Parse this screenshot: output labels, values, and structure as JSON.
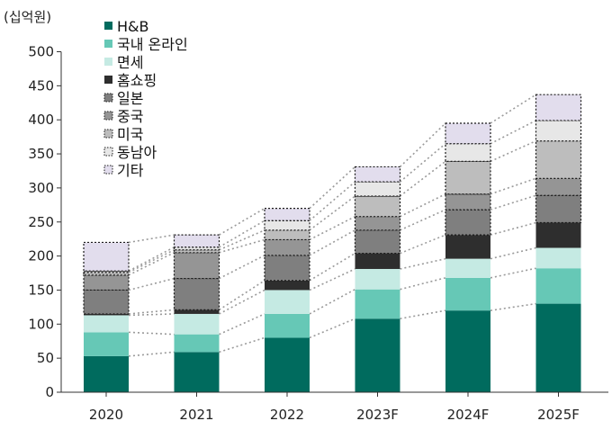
{
  "chart_data": {
    "type": "bar",
    "stacked": true,
    "unit_label": "(십억원)",
    "categories": [
      "2020",
      "2021",
      "2022",
      "2023F",
      "2024F",
      "2025F"
    ],
    "ylim": [
      0,
      500
    ],
    "yticks": [
      0,
      50,
      100,
      150,
      200,
      250,
      300,
      350,
      400,
      450,
      500
    ],
    "grid": false,
    "legend_position": "top-left",
    "connector_lines": "dotted lines join matching segment boundaries of adjacent bars",
    "series": [
      {
        "name": "H&B",
        "color": "#006B5E",
        "values": [
          53,
          59,
          80,
          108,
          120,
          130
        ]
      },
      {
        "name": "국내 온라인",
        "color": "#66C8B6",
        "values": [
          35,
          26,
          35,
          43,
          48,
          52
        ]
      },
      {
        "name": "면세",
        "color": "#C5EAE3",
        "values": [
          25,
          30,
          35,
          30,
          28,
          30
        ]
      },
      {
        "name": "홈쇼핑",
        "color": "#2E2E2E",
        "values": [
          2,
          6,
          14,
          23,
          35,
          37
        ]
      },
      {
        "name": "일본",
        "color": "#7F7F7F",
        "values": [
          35,
          46,
          37,
          34,
          37,
          40
        ]
      },
      {
        "name": "중국",
        "color": "#959595",
        "values": [
          22,
          38,
          23,
          20,
          23,
          25
        ]
      },
      {
        "name": "미국",
        "color": "#BDBDBD",
        "values": [
          4,
          4,
          14,
          30,
          48,
          55
        ]
      },
      {
        "name": "동남아",
        "color": "#E7E7E7",
        "values": [
          2,
          4,
          14,
          21,
          26,
          30
        ]
      },
      {
        "name": "기타",
        "color": "#E2DDED",
        "values": [
          42,
          18,
          18,
          22,
          30,
          38
        ]
      }
    ]
  }
}
